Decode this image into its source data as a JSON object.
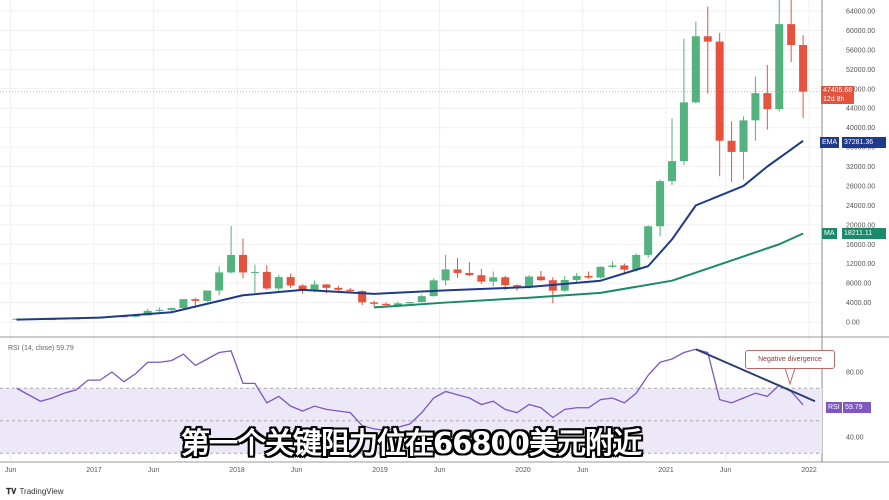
{
  "chart_data": {
    "type": "candlestick",
    "panes": [
      "price",
      "rsi"
    ],
    "price_axis": {
      "ylim": [
        0,
        64000
      ],
      "ticks": [
        "64000.00",
        "60000.00",
        "56000.00",
        "52000.00",
        "48000.00",
        "44000.00",
        "40000.00",
        "36000.00",
        "32000.00",
        "28000.00",
        "24000.00",
        "20000.00",
        "16000.00",
        "12000.00",
        "8000.00",
        "4000.00",
        "0.00"
      ]
    },
    "x_ticks": [
      [
        "2016-06",
        "Jun"
      ],
      [
        "2017-01",
        "2017"
      ],
      [
        "2017-06",
        "Jun"
      ],
      [
        "2018-01",
        "2018"
      ],
      [
        "2018-06",
        "Jun"
      ],
      [
        "2019-01",
        "2019"
      ],
      [
        "2019-06",
        "Jun"
      ],
      [
        "2020-01",
        "2020"
      ],
      [
        "2020-06",
        "Jun"
      ],
      [
        "2021-01",
        "2021"
      ],
      [
        "2021-06",
        "Jun"
      ],
      [
        "2022-01",
        "2022"
      ]
    ],
    "grid": true,
    "dates": [
      "2016-06",
      "2016-07",
      "2016-08",
      "2016-09",
      "2016-10",
      "2016-11",
      "2016-12",
      "2017-01",
      "2017-02",
      "2017-03",
      "2017-04",
      "2017-05",
      "2017-06",
      "2017-07",
      "2017-08",
      "2017-09",
      "2017-10",
      "2017-11",
      "2017-12",
      "2018-01",
      "2018-02",
      "2018-03",
      "2018-04",
      "2018-05",
      "2018-06",
      "2018-07",
      "2018-08",
      "2018-09",
      "2018-10",
      "2018-11",
      "2018-12",
      "2019-01",
      "2019-02",
      "2019-03",
      "2019-04",
      "2019-05",
      "2019-06",
      "2019-07",
      "2019-08",
      "2019-09",
      "2019-10",
      "2019-11",
      "2019-12",
      "2020-01",
      "2020-02",
      "2020-03",
      "2020-04",
      "2020-05",
      "2020-06",
      "2020-07",
      "2020-08",
      "2020-09",
      "2020-10",
      "2020-11",
      "2020-12",
      "2021-01",
      "2021-02",
      "2021-03",
      "2021-04",
      "2021-05",
      "2021-06",
      "2021-07",
      "2021-08",
      "2021-09",
      "2021-10",
      "2021-11",
      "2021-12"
    ],
    "ohlc": [
      [
        530,
        780,
        520,
        673
      ],
      [
        673,
        700,
        580,
        624
      ],
      [
        624,
        630,
        530,
        575
      ],
      [
        575,
        620,
        570,
        609
      ],
      [
        609,
        720,
        605,
        700
      ],
      [
        700,
        750,
        690,
        745
      ],
      [
        745,
        970,
        740,
        963
      ],
      [
        963,
        1150,
        750,
        970
      ],
      [
        970,
        1200,
        920,
        1190
      ],
      [
        1190,
        1300,
        900,
        1080
      ],
      [
        1080,
        1350,
        1060,
        1350
      ],
      [
        1350,
        2700,
        1350,
        2300
      ],
      [
        2300,
        3000,
        2100,
        2480
      ],
      [
        2480,
        2950,
        1850,
        2875
      ],
      [
        2875,
        4750,
        2700,
        4700
      ],
      [
        4700,
        5000,
        2950,
        4340
      ],
      [
        4340,
        6470,
        4110,
        6470
      ],
      [
        6470,
        11500,
        5500,
        10200
      ],
      [
        10200,
        19800,
        10000,
        13800
      ],
      [
        13800,
        17200,
        9000,
        10200
      ],
      [
        10200,
        11800,
        6000,
        10300
      ],
      [
        10300,
        11700,
        6600,
        6900
      ],
      [
        6900,
        9750,
        6430,
        9240
      ],
      [
        9240,
        10000,
        7000,
        7500
      ],
      [
        7500,
        7800,
        5800,
        6400
      ],
      [
        6400,
        8500,
        6100,
        7730
      ],
      [
        7730,
        7770,
        5880,
        7030
      ],
      [
        7030,
        7400,
        6100,
        6630
      ],
      [
        6630,
        7000,
        6200,
        6370
      ],
      [
        6370,
        6550,
        3500,
        4040
      ],
      [
        4040,
        4400,
        3150,
        3740
      ],
      [
        3740,
        4100,
        3350,
        3460
      ],
      [
        3460,
        4200,
        3400,
        3850
      ],
      [
        3850,
        4150,
        3700,
        4100
      ],
      [
        4100,
        5600,
        4080,
        5320
      ],
      [
        5320,
        9000,
        5300,
        8570
      ],
      [
        8570,
        13800,
        7500,
        10820
      ],
      [
        10820,
        13200,
        9100,
        10090
      ],
      [
        10090,
        12300,
        9400,
        9630
      ],
      [
        9630,
        10900,
        7800,
        8300
      ],
      [
        8300,
        10400,
        7300,
        9200
      ],
      [
        9200,
        9500,
        6550,
        7570
      ],
      [
        7570,
        7750,
        6430,
        7200
      ],
      [
        7200,
        9600,
        6900,
        9350
      ],
      [
        9350,
        10500,
        8450,
        8600
      ],
      [
        8600,
        9200,
        3850,
        6440
      ],
      [
        6440,
        9450,
        6200,
        8660
      ],
      [
        8660,
        10100,
        8100,
        9460
      ],
      [
        9460,
        10400,
        8900,
        9140
      ],
      [
        9140,
        11450,
        8950,
        11350
      ],
      [
        11350,
        12500,
        11100,
        11650
      ],
      [
        11650,
        12050,
        9850,
        10780
      ],
      [
        10780,
        14100,
        10400,
        13800
      ],
      [
        13800,
        19900,
        13200,
        19700
      ],
      [
        19700,
        29300,
        17600,
        28990
      ],
      [
        28990,
        41900,
        28200,
        33100
      ],
      [
        33100,
        58300,
        32300,
        45200
      ],
      [
        45200,
        61800,
        45000,
        58800
      ],
      [
        58800,
        64900,
        47000,
        57700
      ],
      [
        57700,
        59500,
        30000,
        37300
      ],
      [
        37300,
        41300,
        28800,
        35000
      ],
      [
        35000,
        42300,
        29300,
        41500
      ],
      [
        41500,
        50500,
        37300,
        47100
      ],
      [
        47100,
        52900,
        39600,
        43800
      ],
      [
        43800,
        67000,
        43300,
        61300
      ],
      [
        61300,
        69000,
        53500,
        57000
      ],
      [
        57000,
        59000,
        42000,
        47405.68
      ]
    ],
    "current_price": {
      "value": "47405.68",
      "countdown": "12d 8h"
    },
    "series": [
      {
        "name": "EMA",
        "value_label": "37281.36",
        "color": "#1e3a8a",
        "points": [
          [
            "2016-06",
            500
          ],
          [
            "2017-01",
            900
          ],
          [
            "2017-07",
            2000
          ],
          [
            "2018-01",
            5500
          ],
          [
            "2018-06",
            6600
          ],
          [
            "2018-12",
            5800
          ],
          [
            "2019-06",
            6500
          ],
          [
            "2020-01",
            7200
          ],
          [
            "2020-07",
            8500
          ],
          [
            "2020-11",
            11500
          ],
          [
            "2021-01",
            17000
          ],
          [
            "2021-03",
            24000
          ],
          [
            "2021-05",
            26000
          ],
          [
            "2021-07",
            28000
          ],
          [
            "2021-09",
            32000
          ],
          [
            "2021-11",
            35500
          ],
          [
            "2021-12",
            37281.36
          ]
        ]
      },
      {
        "name": "MA",
        "value_label": "18211.11",
        "color": "#1b8a6b",
        "points": [
          [
            "2018-12",
            3000
          ],
          [
            "2019-06",
            4000
          ],
          [
            "2020-01",
            5000
          ],
          [
            "2020-07",
            6000
          ],
          [
            "2021-01",
            8500
          ],
          [
            "2021-04",
            11000
          ],
          [
            "2021-07",
            13500
          ],
          [
            "2021-10",
            16000
          ],
          [
            "2021-12",
            18211.11
          ]
        ]
      }
    ],
    "rsi": {
      "legend": "RSI (14, close)",
      "legend_value": "59.79",
      "label": "RSI",
      "value_label": "59.79",
      "color": "#7e57c2",
      "ticks": [
        "80.00",
        "40.00"
      ],
      "band": [
        30,
        70
      ],
      "values": [
        70,
        66,
        62,
        64,
        67,
        69,
        75,
        75,
        80,
        74,
        79,
        86,
        86,
        87,
        91,
        84,
        88,
        92,
        93,
        73,
        73,
        61,
        65,
        59,
        56,
        59,
        57,
        56,
        55,
        47,
        45,
        44,
        46,
        48,
        55,
        64,
        68,
        66,
        64,
        60,
        62,
        57,
        55,
        60,
        58,
        52,
        57,
        58,
        58,
        63,
        64,
        61,
        67,
        78,
        86,
        88,
        92,
        94,
        92,
        63,
        61,
        64,
        67,
        65,
        72,
        68,
        59.79
      ],
      "divergence_line": [
        [
          "2021-03",
          94
        ],
        [
          "2022-01",
          62
        ]
      ]
    },
    "annotation": "Negative divergence",
    "colors": {
      "up": "#53b27e",
      "down": "#e5533f",
      "band": "#ede8f8"
    }
  },
  "subtitle": "第一个关键阻力位在66800美元附近",
  "brand": {
    "logo": "TV",
    "name": "TradingView"
  }
}
